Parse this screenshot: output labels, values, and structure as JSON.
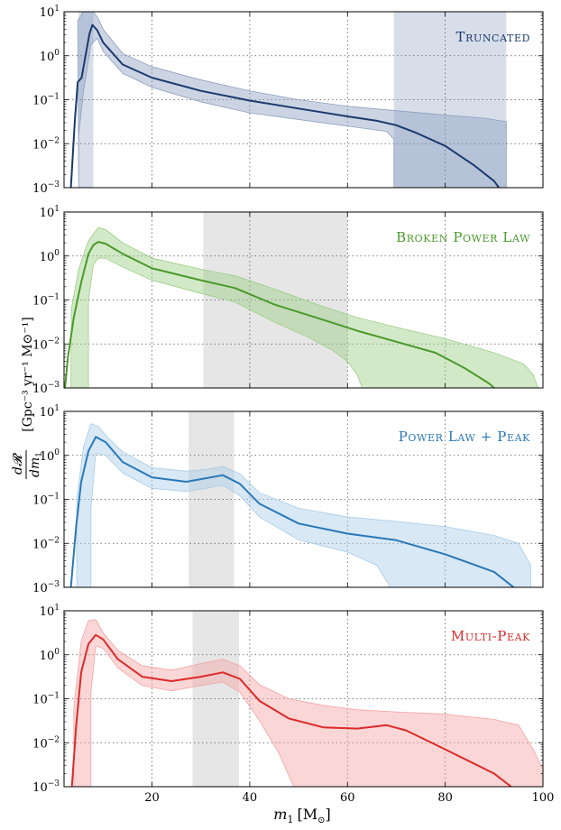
{
  "chart_data": {
    "type": "line",
    "xlabel_main": "m",
    "xlabel_sub": "1",
    "xlabel_unit": "[M",
    "xlabel_unit_sub": "⊙",
    "xlabel_close": "]",
    "ylabel_num": "d𝓡",
    "ylabel_den": "dm",
    "ylabel_den_sub": "1",
    "ylabel_units": "[Gpc⁻³ yr⁻¹ M⊙⁻¹]",
    "xlim": [
      2,
      100
    ],
    "ylim_exp": [
      -3,
      1
    ],
    "x_ticks": [
      20,
      40,
      60,
      80,
      100
    ],
    "x_tick_labels": [
      "20",
      "40",
      "60",
      "80",
      "100"
    ],
    "y_tick_base": "10",
    "y_tick_exps": [
      "1",
      "0",
      "-1",
      "-2",
      "-3"
    ],
    "panels": [
      {
        "title": "Truncated",
        "color": "#1a3a6e",
        "band_fill": "#8ea0c0",
        "shade": [
          [
            5,
            8
          ],
          [
            69.5,
            92.5
          ]
        ],
        "shade_color": "#8ea0c0",
        "median": [
          [
            3.4,
            -3
          ],
          [
            4.2,
            -1.5
          ],
          [
            4.8,
            -0.6
          ],
          [
            5.6,
            -0.5
          ],
          [
            6.4,
            0.0
          ],
          [
            7.2,
            0.5
          ],
          [
            7.8,
            0.7
          ],
          [
            8.8,
            0.58
          ],
          [
            10,
            0.3
          ],
          [
            14,
            -0.2
          ],
          [
            20,
            -0.5
          ],
          [
            30,
            -0.8
          ],
          [
            40,
            -1.02
          ],
          [
            50,
            -1.2
          ],
          [
            60,
            -1.38
          ],
          [
            66,
            -1.48
          ],
          [
            70,
            -1.58
          ],
          [
            74,
            -1.75
          ],
          [
            80,
            -2.05
          ],
          [
            86,
            -2.5
          ],
          [
            90,
            -2.85
          ],
          [
            91,
            -3
          ]
        ],
        "upper": [
          [
            4.8,
            0.8
          ],
          [
            6,
            1.0
          ],
          [
            8,
            1.0
          ],
          [
            9,
            0.85
          ],
          [
            10,
            0.6
          ],
          [
            14,
            0.05
          ],
          [
            20,
            -0.25
          ],
          [
            30,
            -0.55
          ],
          [
            40,
            -0.8
          ],
          [
            50,
            -1.0
          ],
          [
            60,
            -1.15
          ],
          [
            70,
            -1.25
          ],
          [
            80,
            -1.35
          ],
          [
            88,
            -1.42
          ],
          [
            92.5,
            -1.5
          ],
          [
            92.5,
            -3
          ]
        ],
        "lower": [
          [
            5,
            -3
          ],
          [
            5,
            -1.8
          ],
          [
            6,
            -0.8
          ],
          [
            7.5,
            0.25
          ],
          [
            8.8,
            0.4
          ],
          [
            10,
            0.1
          ],
          [
            14,
            -0.4
          ],
          [
            20,
            -0.72
          ],
          [
            30,
            -1.05
          ],
          [
            40,
            -1.3
          ],
          [
            50,
            -1.45
          ],
          [
            60,
            -1.6
          ],
          [
            68,
            -1.72
          ],
          [
            69.5,
            -1.9
          ],
          [
            69.5,
            -3
          ]
        ]
      },
      {
        "title": "Broken Power Law",
        "color": "#4a9a2a",
        "band_fill": "#9ccf86",
        "shade": [
          [
            30.5,
            60
          ]
        ],
        "shade_color": "#e3e3e3",
        "median": [
          [
            2.2,
            -3
          ],
          [
            2.8,
            -2.3
          ],
          [
            4,
            -1.4
          ],
          [
            5.5,
            -0.6
          ],
          [
            7,
            0.05
          ],
          [
            8,
            0.25
          ],
          [
            9,
            0.32
          ],
          [
            10.5,
            0.28
          ],
          [
            14,
            0.05
          ],
          [
            20,
            -0.28
          ],
          [
            30,
            -0.55
          ],
          [
            37,
            -0.73
          ],
          [
            45,
            -1.1
          ],
          [
            55,
            -1.45
          ],
          [
            62,
            -1.7
          ],
          [
            70,
            -1.95
          ],
          [
            78,
            -2.2
          ],
          [
            84,
            -2.55
          ],
          [
            89,
            -2.9
          ],
          [
            90,
            -3
          ]
        ],
        "upper": [
          [
            3.4,
            -3
          ],
          [
            3.5,
            -1.2
          ],
          [
            5,
            -0.3
          ],
          [
            7,
            0.35
          ],
          [
            9,
            0.65
          ],
          [
            10.5,
            0.6
          ],
          [
            14,
            0.3
          ],
          [
            20,
            -0.05
          ],
          [
            30,
            -0.3
          ],
          [
            37,
            -0.45
          ],
          [
            45,
            -0.75
          ],
          [
            55,
            -1.15
          ],
          [
            62,
            -1.4
          ],
          [
            70,
            -1.62
          ],
          [
            80,
            -1.88
          ],
          [
            90,
            -2.2
          ],
          [
            96,
            -2.45
          ],
          [
            98,
            -2.7
          ],
          [
            99,
            -3
          ]
        ],
        "lower": [
          [
            7,
            -3
          ],
          [
            7,
            -1.0
          ],
          [
            8,
            -0.2
          ],
          [
            9,
            -0.05
          ],
          [
            10.5,
            -0.05
          ],
          [
            14,
            -0.25
          ],
          [
            20,
            -0.55
          ],
          [
            30,
            -0.85
          ],
          [
            37,
            -1.05
          ],
          [
            45,
            -1.5
          ],
          [
            52,
            -1.85
          ],
          [
            57,
            -2.15
          ],
          [
            60,
            -2.4
          ],
          [
            62,
            -2.7
          ],
          [
            63,
            -3
          ]
        ]
      },
      {
        "title": "Power Law + Peak",
        "color": "#2878b8",
        "band_fill": "#a8cde8",
        "shade": [
          [
            27.5,
            36.8
          ]
        ],
        "shade_color": "#e3e3e3",
        "median": [
          [
            3.4,
            -3
          ],
          [
            4.5,
            -1.6
          ],
          [
            5.5,
            -0.6
          ],
          [
            7,
            0.1
          ],
          [
            8.5,
            0.42
          ],
          [
            10.5,
            0.3
          ],
          [
            14,
            -0.15
          ],
          [
            20,
            -0.5
          ],
          [
            27,
            -0.6
          ],
          [
            31,
            -0.52
          ],
          [
            34.5,
            -0.45
          ],
          [
            38,
            -0.65
          ],
          [
            42,
            -1.1
          ],
          [
            50,
            -1.55
          ],
          [
            60,
            -1.78
          ],
          [
            70,
            -1.93
          ],
          [
            80,
            -2.25
          ],
          [
            90,
            -2.65
          ],
          [
            94,
            -3
          ]
        ],
        "upper": [
          [
            4.6,
            -3
          ],
          [
            4.6,
            -1.0
          ],
          [
            6,
            0.2
          ],
          [
            7.5,
            0.72
          ],
          [
            9,
            0.66
          ],
          [
            11,
            0.4
          ],
          [
            14,
            0.08
          ],
          [
            20,
            -0.28
          ],
          [
            27,
            -0.36
          ],
          [
            31,
            -0.32
          ],
          [
            34.5,
            -0.25
          ],
          [
            38,
            -0.42
          ],
          [
            42,
            -0.85
          ],
          [
            50,
            -1.2
          ],
          [
            60,
            -1.4
          ],
          [
            70,
            -1.5
          ],
          [
            80,
            -1.62
          ],
          [
            90,
            -1.82
          ],
          [
            95,
            -2.0
          ],
          [
            97.5,
            -2.5
          ],
          [
            97.5,
            -3
          ]
        ],
        "lower": [
          [
            7.5,
            -3
          ],
          [
            7.5,
            -1.2
          ],
          [
            8.5,
            0.05
          ],
          [
            10.5,
            0.0
          ],
          [
            14,
            -0.4
          ],
          [
            20,
            -0.75
          ],
          [
            27,
            -0.82
          ],
          [
            31,
            -0.75
          ],
          [
            34.5,
            -0.68
          ],
          [
            38,
            -0.92
          ],
          [
            42,
            -1.4
          ],
          [
            50,
            -1.92
          ],
          [
            60,
            -2.2
          ],
          [
            66,
            -2.5
          ],
          [
            68.8,
            -3
          ]
        ]
      },
      {
        "title": "Multi-Peak",
        "color": "#dd2a2a",
        "band_fill": "#f5a4a4",
        "shade": [
          [
            28.3,
            37.8
          ]
        ],
        "shade_color": "#e3e3e3",
        "median": [
          [
            3.6,
            -3
          ],
          [
            4.5,
            -1.6
          ],
          [
            5.5,
            -0.4
          ],
          [
            7,
            0.25
          ],
          [
            8.5,
            0.45
          ],
          [
            10,
            0.35
          ],
          [
            13,
            -0.1
          ],
          [
            18,
            -0.5
          ],
          [
            24,
            -0.6
          ],
          [
            30,
            -0.5
          ],
          [
            34.5,
            -0.4
          ],
          [
            38,
            -0.55
          ],
          [
            42,
            -1.05
          ],
          [
            48,
            -1.45
          ],
          [
            55,
            -1.65
          ],
          [
            62,
            -1.68
          ],
          [
            68,
            -1.6
          ],
          [
            72,
            -1.72
          ],
          [
            80,
            -2.15
          ],
          [
            90,
            -2.7
          ],
          [
            93.5,
            -3
          ]
        ],
        "upper": [
          [
            4,
            -3
          ],
          [
            4,
            -1.2
          ],
          [
            5.5,
            0.3
          ],
          [
            7,
            0.78
          ],
          [
            8.5,
            0.8
          ],
          [
            10,
            0.5
          ],
          [
            13,
            0.1
          ],
          [
            18,
            -0.25
          ],
          [
            24,
            -0.35
          ],
          [
            30,
            -0.2
          ],
          [
            34.5,
            -0.1
          ],
          [
            38,
            -0.25
          ],
          [
            42,
            -0.68
          ],
          [
            48,
            -1.0
          ],
          [
            55,
            -1.15
          ],
          [
            62,
            -1.25
          ],
          [
            70,
            -1.3
          ],
          [
            80,
            -1.35
          ],
          [
            90,
            -1.47
          ],
          [
            95,
            -1.6
          ],
          [
            98,
            -2.15
          ],
          [
            100,
            -2.6
          ],
          [
            100,
            -3
          ]
        ],
        "lower": [
          [
            7.5,
            -3
          ],
          [
            7.5,
            -0.85
          ],
          [
            8.5,
            0.2
          ],
          [
            10,
            0.15
          ],
          [
            13,
            -0.3
          ],
          [
            18,
            -0.7
          ],
          [
            24,
            -0.82
          ],
          [
            30,
            -0.7
          ],
          [
            34.5,
            -0.62
          ],
          [
            38,
            -0.85
          ],
          [
            42,
            -1.5
          ],
          [
            46,
            -2.25
          ],
          [
            49,
            -3
          ]
        ]
      }
    ]
  }
}
